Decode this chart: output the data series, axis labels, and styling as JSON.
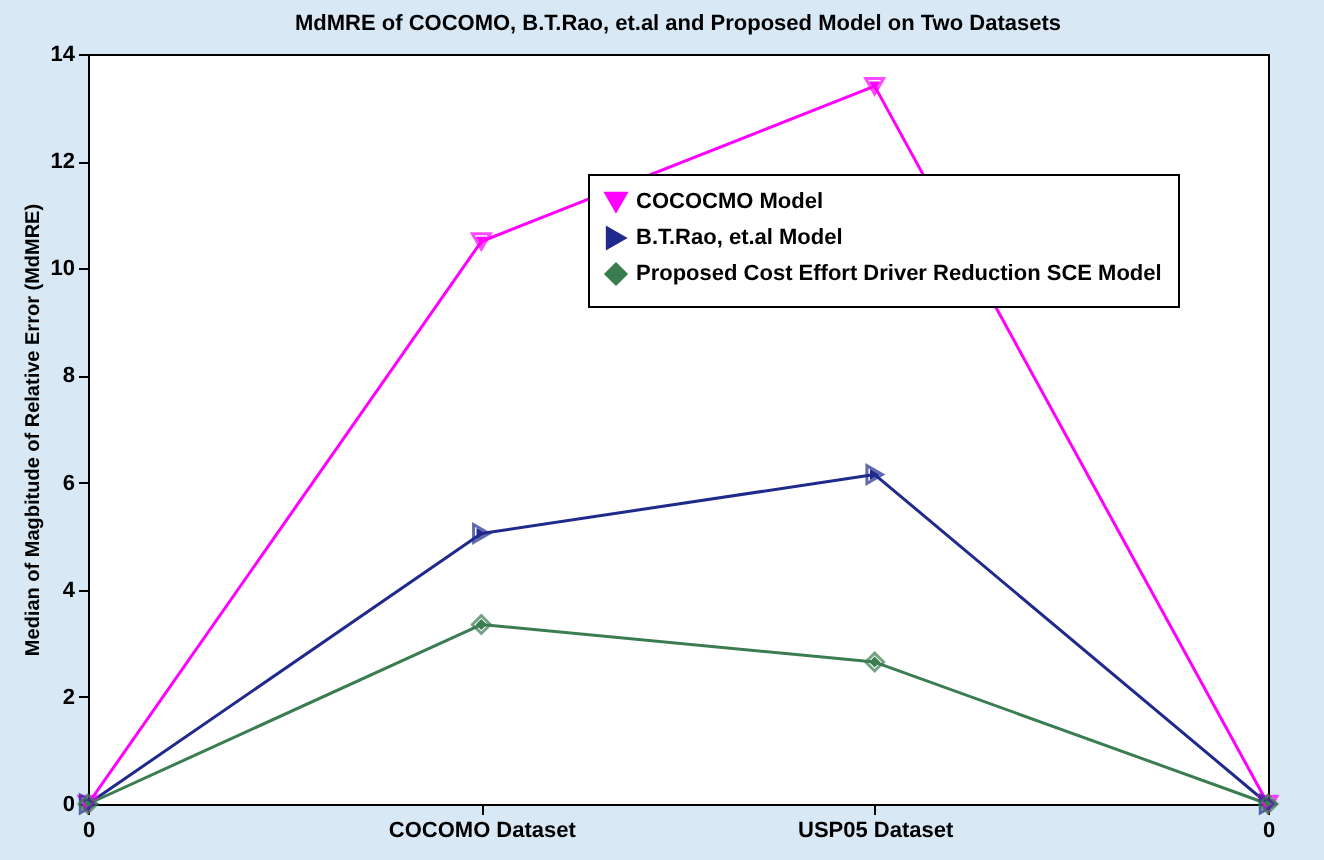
{
  "chart_data": {
    "type": "line",
    "title": "MdMRE of COCOMO, B.T.Rao, et.al and Proposed Model on Two Datasets",
    "ylabel": "Median of Magbitude of Relative Error (MdMRE)",
    "categories": [
      "0",
      "COCOMO Dataset",
      "USP05 Dataset",
      "0"
    ],
    "series": [
      {
        "name": "COCOCMO Model",
        "color": "#ff00ff",
        "marker": "triangle-down",
        "values": [
          0,
          10.5,
          13.4,
          0
        ]
      },
      {
        "name": "B.T.Rao, et.al Model",
        "color": "#1f2a8c",
        "marker": "triangle-right",
        "values": [
          0,
          5.05,
          6.15,
          0
        ]
      },
      {
        "name": "Proposed Cost Effort Driver Reduction SCE Model",
        "color": "#3a7d50",
        "marker": "diamond",
        "values": [
          0,
          3.35,
          2.65,
          0
        ]
      }
    ],
    "ylim": [
      0,
      14
    ],
    "yticks": [
      0,
      2,
      4,
      6,
      8,
      10,
      12,
      14
    ],
    "grid": false,
    "legend": "top right",
    "line_style": "solid"
  }
}
